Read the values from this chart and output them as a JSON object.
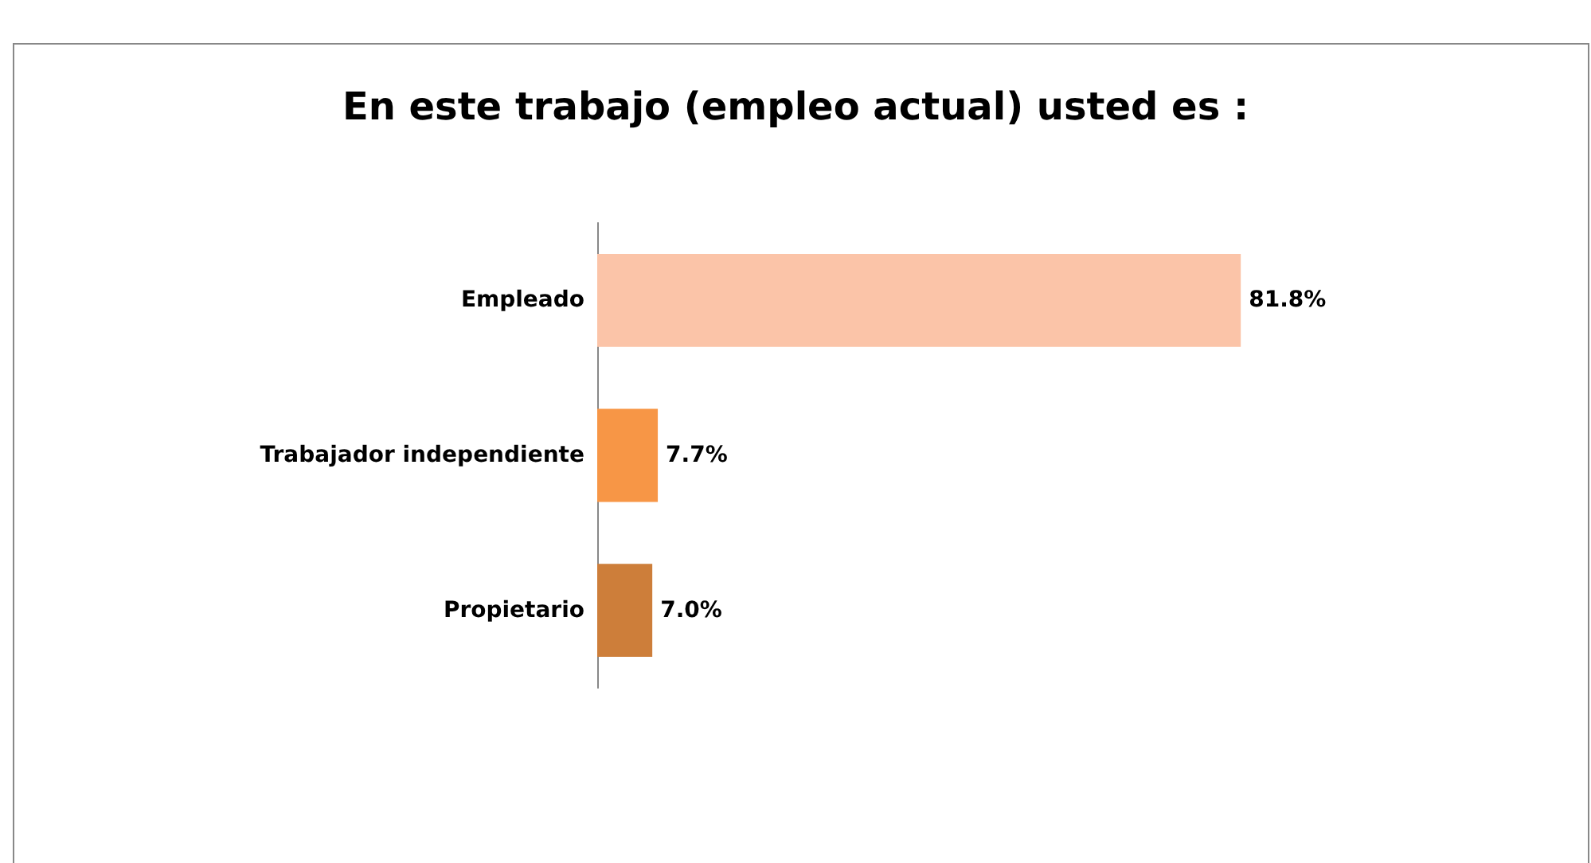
{
  "chart_data": {
    "type": "bar",
    "orientation": "horizontal",
    "title": "En este trabajo (empleo actual) usted es :",
    "categories": [
      "Empleado",
      "Trabajador independiente",
      "Propietario"
    ],
    "values": [
      81.8,
      7.7,
      7.0
    ],
    "value_labels": [
      "81.8%",
      "7.7%",
      "7.0%"
    ],
    "colors": [
      "#fbc4a8",
      "#f79646",
      "#cd7e3a"
    ]
  }
}
